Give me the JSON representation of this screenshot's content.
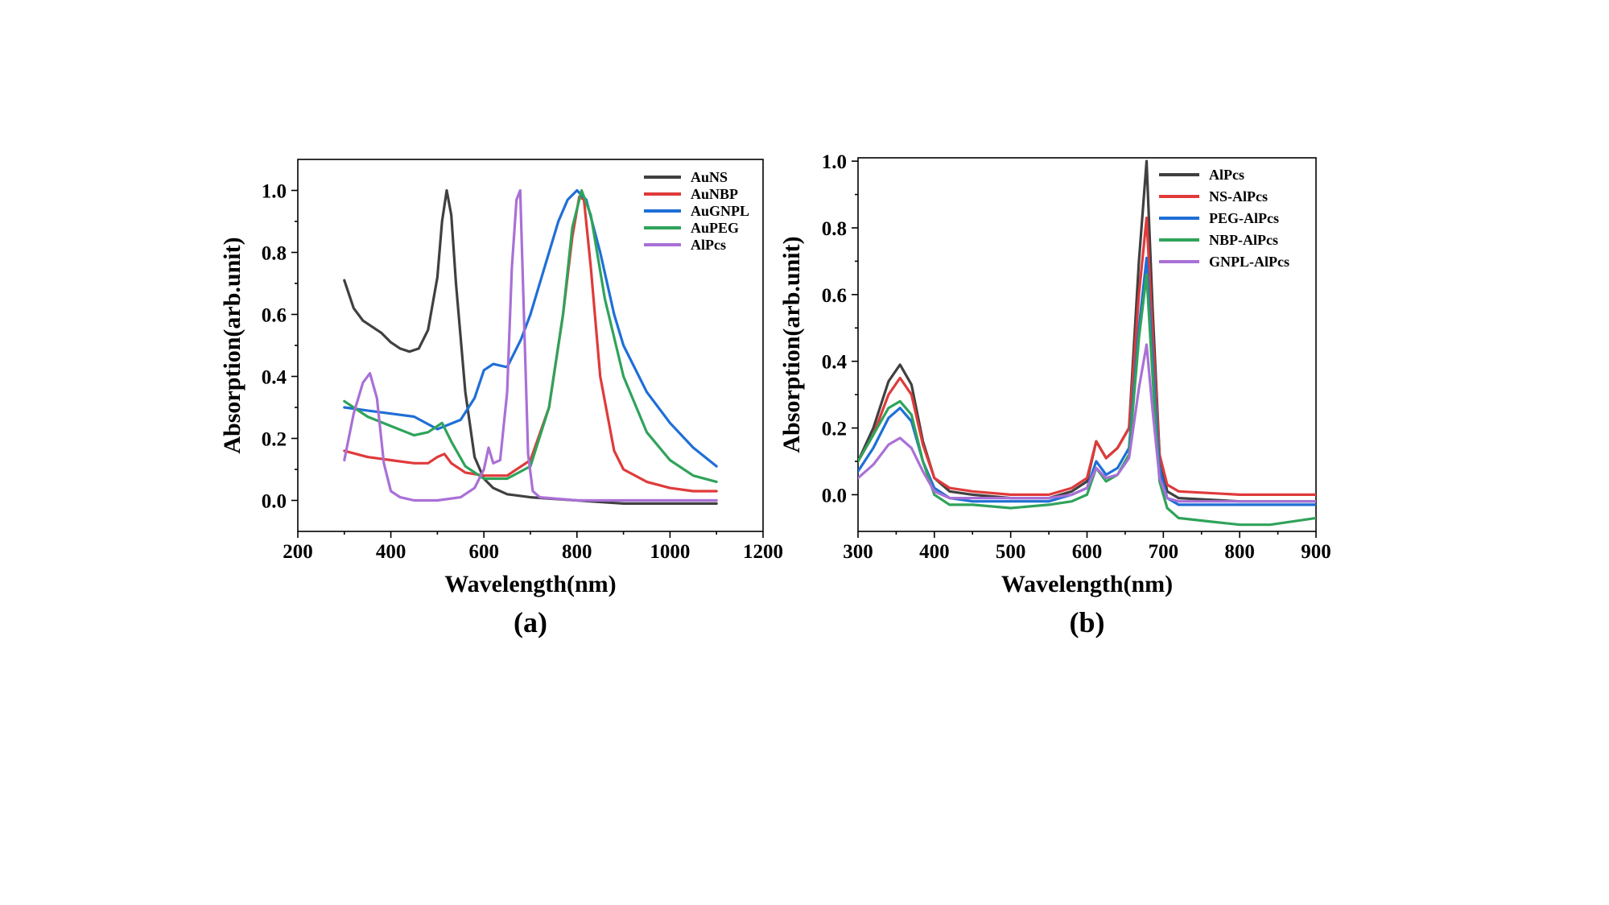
{
  "chart_data": [
    {
      "type": "line",
      "panel_label": "(a)",
      "xlabel": "Wavelength(nm)",
      "ylabel": "Absorption(arb.unit)",
      "xlim": [
        200,
        1200
      ],
      "ylim": [
        -0.1,
        1.1
      ],
      "xticks": [
        200,
        400,
        600,
        800,
        1000,
        1200
      ],
      "yticks": [
        0.0,
        0.2,
        0.4,
        0.6,
        0.8,
        1.0
      ],
      "legend_position": "top-right",
      "series": [
        {
          "name": "AuNS",
          "color": "#404040",
          "x": [
            300,
            320,
            340,
            360,
            380,
            400,
            420,
            440,
            460,
            480,
            500,
            510,
            520,
            530,
            540,
            560,
            580,
            600,
            620,
            650,
            700,
            800,
            900,
            1000,
            1100
          ],
          "y": [
            0.71,
            0.62,
            0.58,
            0.56,
            0.54,
            0.51,
            0.49,
            0.48,
            0.49,
            0.55,
            0.72,
            0.9,
            1.0,
            0.92,
            0.7,
            0.35,
            0.14,
            0.07,
            0.04,
            0.02,
            0.01,
            0.0,
            -0.01,
            -0.01,
            -0.01
          ]
        },
        {
          "name": "AuNBP",
          "color": "#e03a3a",
          "x": [
            300,
            350,
            400,
            450,
            480,
            500,
            515,
            530,
            560,
            600,
            650,
            700,
            740,
            770,
            790,
            805,
            815,
            830,
            850,
            880,
            900,
            950,
            1000,
            1050,
            1100
          ],
          "y": [
            0.16,
            0.14,
            0.13,
            0.12,
            0.12,
            0.14,
            0.15,
            0.12,
            0.09,
            0.08,
            0.08,
            0.13,
            0.3,
            0.6,
            0.85,
            0.98,
            0.97,
            0.75,
            0.4,
            0.16,
            0.1,
            0.06,
            0.04,
            0.03,
            0.03
          ]
        },
        {
          "name": "AuGNPL",
          "color": "#1f6fd6",
          "x": [
            300,
            350,
            400,
            450,
            500,
            550,
            580,
            600,
            620,
            650,
            680,
            700,
            730,
            760,
            780,
            800,
            820,
            850,
            880,
            900,
            950,
            1000,
            1050,
            1100
          ],
          "y": [
            0.3,
            0.29,
            0.28,
            0.27,
            0.23,
            0.26,
            0.33,
            0.42,
            0.44,
            0.43,
            0.52,
            0.6,
            0.75,
            0.9,
            0.97,
            1.0,
            0.97,
            0.8,
            0.6,
            0.5,
            0.35,
            0.25,
            0.17,
            0.11
          ]
        },
        {
          "name": "AuPEG",
          "color": "#2fa35a",
          "x": [
            300,
            350,
            400,
            450,
            480,
            510,
            530,
            560,
            600,
            650,
            700,
            740,
            770,
            790,
            810,
            830,
            860,
            900,
            950,
            1000,
            1050,
            1100
          ],
          "y": [
            0.32,
            0.27,
            0.24,
            0.21,
            0.22,
            0.25,
            0.19,
            0.11,
            0.07,
            0.07,
            0.11,
            0.3,
            0.6,
            0.88,
            1.0,
            0.92,
            0.65,
            0.4,
            0.22,
            0.13,
            0.08,
            0.06
          ]
        },
        {
          "name": "AlPcs",
          "color": "#a970d6",
          "x": [
            300,
            320,
            340,
            355,
            370,
            385,
            400,
            420,
            450,
            500,
            550,
            580,
            600,
            610,
            620,
            635,
            650,
            660,
            670,
            678,
            686,
            695,
            705,
            720,
            800,
            900,
            1000,
            1100
          ],
          "y": [
            0.13,
            0.28,
            0.38,
            0.41,
            0.33,
            0.12,
            0.03,
            0.01,
            0.0,
            0.0,
            0.01,
            0.04,
            0.1,
            0.17,
            0.12,
            0.13,
            0.35,
            0.75,
            0.97,
            1.0,
            0.6,
            0.15,
            0.03,
            0.01,
            0.0,
            0.0,
            0.0,
            0.0
          ]
        }
      ]
    },
    {
      "type": "line",
      "panel_label": "(b)",
      "xlabel": "Wavelength(nm)",
      "ylabel": "Absorption(arb.unit)",
      "xlim": [
        300,
        900
      ],
      "ylim": [
        -0.11,
        1.01
      ],
      "xticks": [
        300,
        400,
        500,
        600,
        700,
        800,
        900
      ],
      "yticks": [
        0.0,
        0.2,
        0.4,
        0.6,
        0.8,
        1.0
      ],
      "legend_position": "top-right",
      "series": [
        {
          "name": "AlPcs",
          "color": "#404040",
          "x": [
            300,
            320,
            340,
            355,
            370,
            385,
            400,
            420,
            450,
            500,
            550,
            580,
            600,
            612,
            625,
            640,
            655,
            668,
            678,
            686,
            695,
            705,
            720,
            800,
            900
          ],
          "y": [
            0.1,
            0.2,
            0.34,
            0.39,
            0.33,
            0.16,
            0.05,
            0.01,
            0.0,
            -0.01,
            -0.01,
            0.01,
            0.04,
            0.16,
            0.11,
            0.14,
            0.2,
            0.7,
            1.0,
            0.55,
            0.12,
            0.01,
            -0.01,
            -0.02,
            -0.02
          ]
        },
        {
          "name": "NS-AlPcs",
          "color": "#e03a3a",
          "x": [
            300,
            320,
            340,
            355,
            370,
            385,
            400,
            420,
            450,
            500,
            550,
            580,
            600,
            612,
            625,
            640,
            655,
            668,
            678,
            686,
            695,
            705,
            720,
            800,
            900
          ],
          "y": [
            0.1,
            0.18,
            0.3,
            0.35,
            0.3,
            0.15,
            0.05,
            0.02,
            0.01,
            0.0,
            0.0,
            0.02,
            0.05,
            0.16,
            0.11,
            0.14,
            0.2,
            0.6,
            0.83,
            0.48,
            0.12,
            0.03,
            0.01,
            0.0,
            0.0
          ]
        },
        {
          "name": "PEG-AlPcs",
          "color": "#1f6fd6",
          "x": [
            300,
            320,
            340,
            355,
            370,
            385,
            400,
            420,
            450,
            500,
            550,
            580,
            600,
            612,
            625,
            640,
            655,
            668,
            678,
            686,
            695,
            705,
            720,
            800,
            900
          ],
          "y": [
            0.07,
            0.14,
            0.23,
            0.26,
            0.22,
            0.1,
            0.02,
            -0.01,
            -0.02,
            -0.02,
            -0.02,
            0.0,
            0.02,
            0.1,
            0.06,
            0.08,
            0.14,
            0.5,
            0.71,
            0.4,
            0.08,
            -0.01,
            -0.03,
            -0.03,
            -0.03
          ]
        },
        {
          "name": "NBP-AlPcs",
          "color": "#2fa35a",
          "x": [
            300,
            320,
            340,
            355,
            370,
            385,
            400,
            420,
            450,
            500,
            550,
            580,
            600,
            612,
            625,
            640,
            655,
            668,
            678,
            686,
            695,
            705,
            720,
            760,
            800,
            840,
            900
          ],
          "y": [
            0.1,
            0.18,
            0.26,
            0.28,
            0.24,
            0.1,
            0.0,
            -0.03,
            -0.03,
            -0.04,
            -0.03,
            -0.02,
            0.0,
            0.08,
            0.04,
            0.06,
            0.12,
            0.47,
            0.66,
            0.35,
            0.04,
            -0.04,
            -0.07,
            -0.08,
            -0.09,
            -0.09,
            -0.07
          ]
        },
        {
          "name": "GNPL-AlPcs",
          "color": "#a970d6",
          "x": [
            300,
            320,
            340,
            355,
            370,
            385,
            400,
            420,
            450,
            500,
            550,
            580,
            600,
            612,
            625,
            640,
            655,
            668,
            678,
            686,
            695,
            705,
            720,
            800,
            900
          ],
          "y": [
            0.05,
            0.09,
            0.15,
            0.17,
            0.14,
            0.07,
            0.01,
            -0.01,
            -0.01,
            -0.01,
            -0.01,
            0.0,
            0.02,
            0.08,
            0.05,
            0.06,
            0.11,
            0.32,
            0.45,
            0.25,
            0.05,
            -0.01,
            -0.02,
            -0.02,
            -0.02
          ]
        }
      ]
    }
  ]
}
